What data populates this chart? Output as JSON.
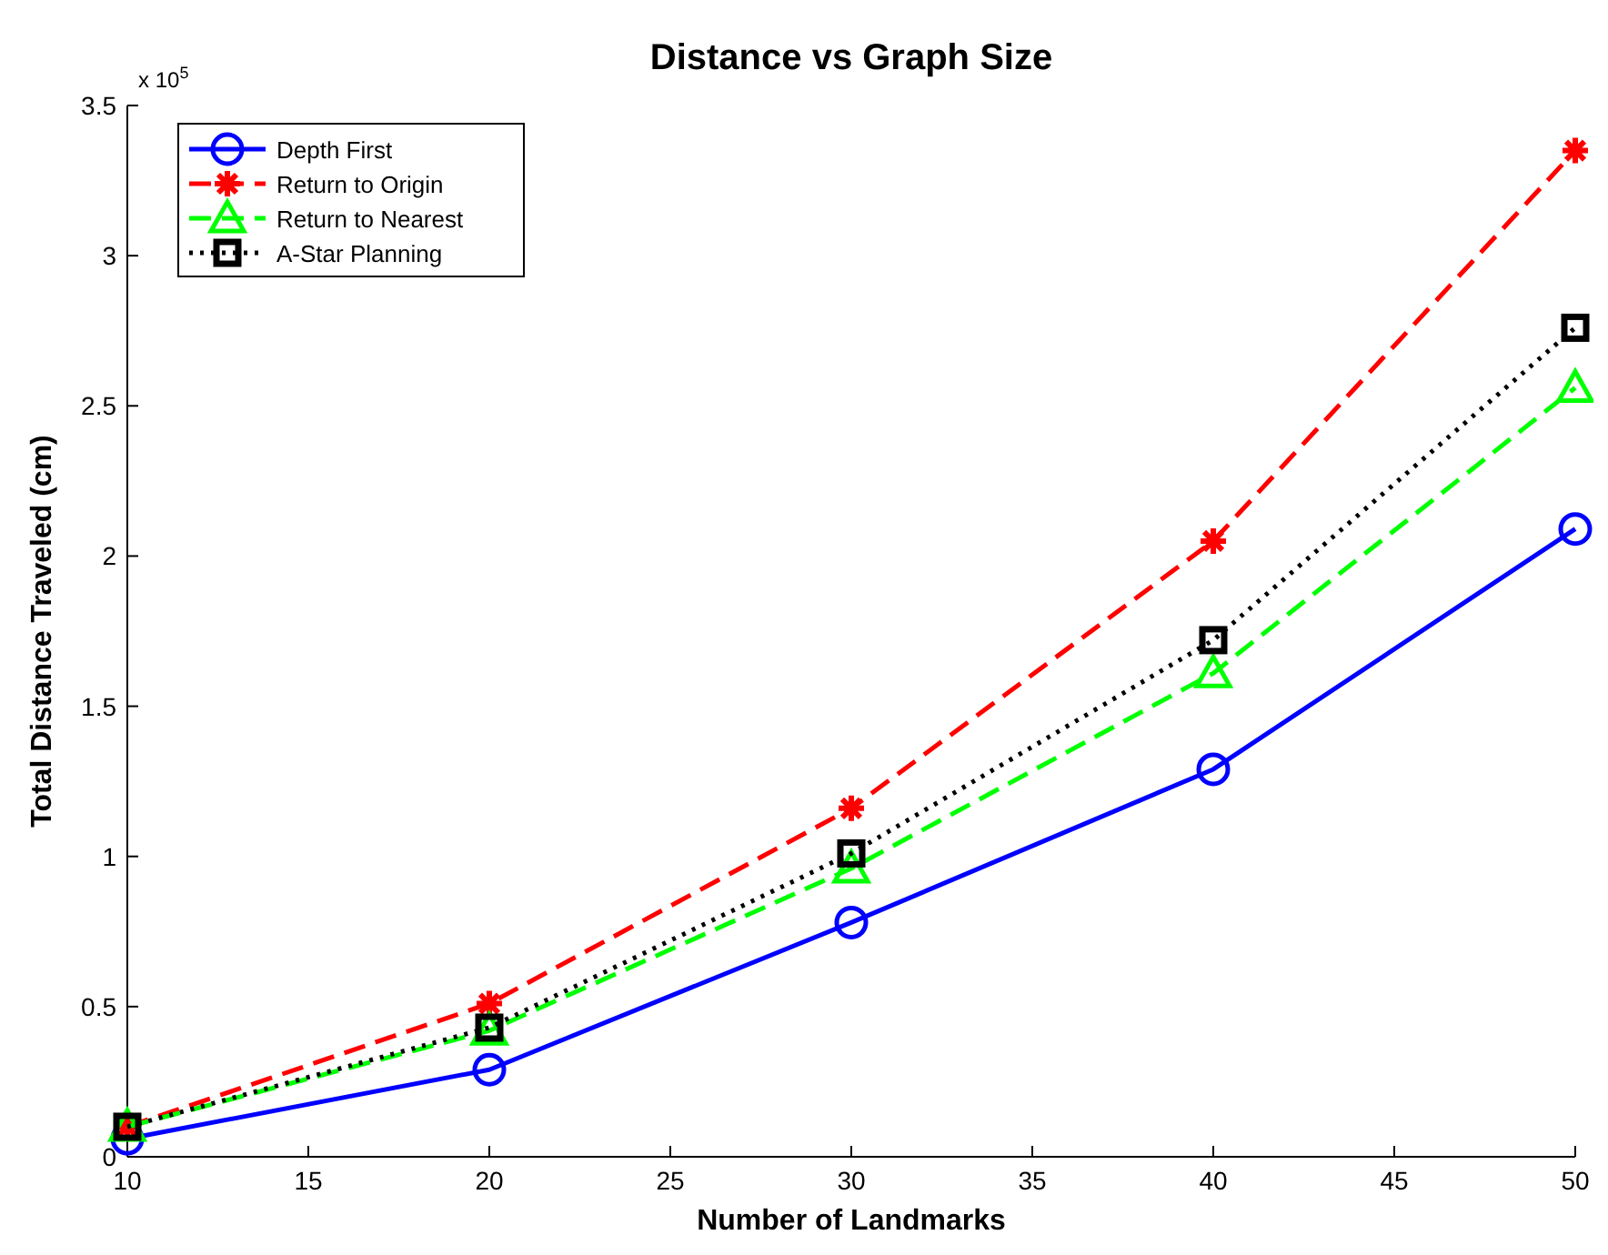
{
  "chart_data": {
    "type": "line",
    "title": "Distance vs Graph Size",
    "xlabel": "Number of Landmarks",
    "ylabel": "Total Distance Traveled (cm)",
    "annotations": [
      "x 10$^{5}$"
    ],
    "x": [
      10,
      20,
      30,
      40,
      50
    ],
    "xlim": [
      10,
      50
    ],
    "xticks": [
      10,
      15,
      20,
      25,
      30,
      35,
      40,
      45,
      50
    ],
    "ylim": [
      0,
      3.5
    ],
    "yticks": [
      0,
      0.5,
      1,
      1.5,
      2,
      2.5,
      3,
      3.5
    ],
    "grid": false,
    "legend": "top left",
    "series": [
      {
        "name": "Depth First",
        "color": "#0000ff",
        "marker": "circle",
        "line_style": "solid",
        "values": [
          0.06,
          0.29,
          0.78,
          1.29,
          2.09
        ]
      },
      {
        "name": "Return to Origin",
        "color": "#ff0000",
        "marker": "cross",
        "line_style": "dashed",
        "values": [
          0.1,
          0.51,
          1.16,
          2.05,
          3.35
        ]
      },
      {
        "name": "Return to Nearest",
        "color": "#00ff00",
        "marker": "triangle",
        "line_style": "dashed",
        "values": [
          0.1,
          0.42,
          0.96,
          1.61,
          2.56
        ]
      },
      {
        "name": "A-Star Planning",
        "color": "#000000",
        "marker": "square",
        "line_style": "dotted",
        "values": [
          0.1,
          0.43,
          1.01,
          1.72,
          2.76
        ]
      }
    ]
  }
}
